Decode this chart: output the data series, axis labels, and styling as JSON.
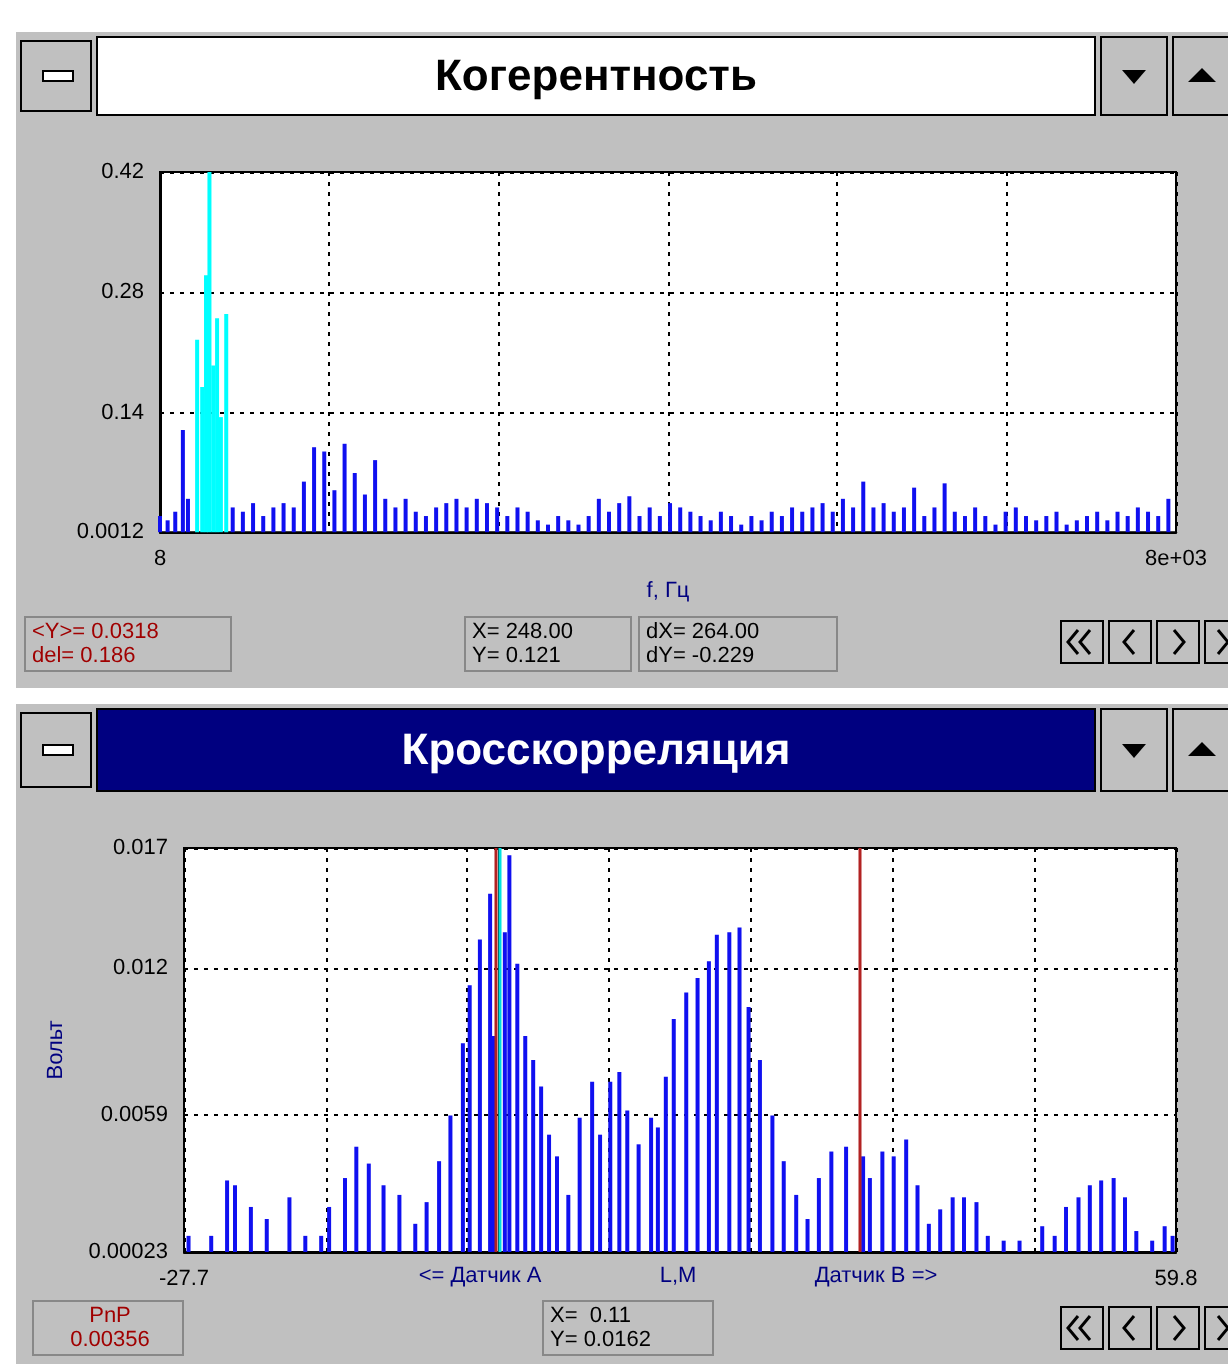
{
  "chart_data": [
    {
      "type": "bar",
      "title": "Когерентность",
      "xlabel": "f, Гц",
      "xlim": [
        8,
        8000
      ],
      "xticks": [
        8,
        {
          "value": 1340,
          "label": null
        },
        {
          "value": 2672,
          "label": null
        },
        {
          "value": 4004,
          "label": null
        },
        {
          "value": 5336,
          "label": null
        },
        {
          "value": 6668,
          "label": null
        },
        {
          "value": 8000,
          "label": "8e+03"
        }
      ],
      "ylim": [
        0.0012,
        0.42
      ],
      "yticks": [
        0.0012,
        0.14,
        0.28,
        0.42
      ],
      "grid": true,
      "series": [
        {
          "color": "#1010f0",
          "x": [
            8,
            68,
            128,
            188,
            228,
            580,
            660,
            740,
            820,
            900,
            980,
            1060,
            1140,
            1220,
            1300,
            1380,
            1460,
            1540,
            1620,
            1700,
            1780,
            1860,
            1940,
            2020,
            2100,
            2180,
            2260,
            2340,
            2420,
            2500,
            2580,
            2660,
            2740,
            2820,
            2900,
            2980,
            3060,
            3140,
            3220,
            3300,
            3380,
            3460,
            3540,
            3620,
            3700,
            3780,
            3860,
            3940,
            4020,
            4100,
            4180,
            4260,
            4340,
            4420,
            4500,
            4580,
            4660,
            4740,
            4820,
            4900,
            4980,
            5060,
            5140,
            5220,
            5300,
            5380,
            5460,
            5540,
            5620,
            5700,
            5780,
            5860,
            5940,
            6020,
            6100,
            6180,
            6260,
            6340,
            6420,
            6500,
            6580,
            6660,
            6740,
            6820,
            6900,
            6980,
            7060,
            7140,
            7220,
            7300,
            7380,
            7460,
            7540,
            7620,
            7700,
            7780,
            7860,
            7940
          ],
          "values": [
            0.02,
            0.015,
            0.025,
            0.12,
            0.04,
            0.03,
            0.025,
            0.035,
            0.02,
            0.03,
            0.035,
            0.03,
            0.06,
            0.1,
            0.095,
            0.05,
            0.104,
            0.07,
            0.045,
            0.085,
            0.04,
            0.03,
            0.04,
            0.025,
            0.02,
            0.03,
            0.035,
            0.04,
            0.03,
            0.04,
            0.035,
            0.03,
            0.02,
            0.03,
            0.025,
            0.015,
            0.01,
            0.02,
            0.015,
            0.01,
            0.02,
            0.04,
            0.025,
            0.035,
            0.043,
            0.02,
            0.03,
            0.02,
            0.035,
            0.03,
            0.025,
            0.02,
            0.015,
            0.025,
            0.02,
            0.01,
            0.02,
            0.015,
            0.025,
            0.02,
            0.03,
            0.025,
            0.03,
            0.035,
            0.025,
            0.04,
            0.03,
            0.06,
            0.03,
            0.035,
            0.025,
            0.03,
            0.053,
            0.02,
            0.03,
            0.058,
            0.025,
            0.02,
            0.03,
            0.02,
            0.01,
            0.025,
            0.03,
            0.02,
            0.015,
            0.02,
            0.025,
            0.01,
            0.015,
            0.02,
            0.025,
            0.015,
            0.025,
            0.02,
            0.03,
            0.025,
            0.02,
            0.04
          ]
        },
        {
          "color": "#00ffff",
          "x": [
            300,
            340,
            370,
            397,
            427,
            457,
            487,
            529
          ],
          "values": [
            0.225,
            0.17,
            0.3,
            0.42,
            0.195,
            0.25,
            0.135,
            0.255
          ]
        }
      ],
      "annotations": [
        "<Y>= 0.0318",
        "del= 0.186",
        "X= 248.00",
        "Y= 0.121",
        "dX= 264.00",
        "dY= -0.229"
      ]
    },
    {
      "type": "bar",
      "title": "Кросскорреляция",
      "ylabel": "Вольт",
      "xlim": [
        -27.7,
        59.8
      ],
      "xticks": [
        -27.7,
        {
          "value": -15.2,
          "label": null
        },
        {
          "value": -2.7,
          "label": null
        },
        {
          "value": 9.8,
          "label": null
        },
        {
          "value": 22.3,
          "label": null
        },
        {
          "value": 34.8,
          "label": null
        },
        {
          "value": 47.3,
          "label": null
        },
        59.8
      ],
      "ylim": [
        0.00023,
        0.017
      ],
      "yticks": [
        0.00023,
        0.0059,
        0.012,
        0.017
      ],
      "grid": true,
      "series": [
        {
          "color": "#1010f0",
          "x": [
            -27.3,
            -25.3,
            -23.9,
            -23.2,
            -21.8,
            -20.4,
            -18.4,
            -17.0,
            -15.6,
            -14.9,
            -13.5,
            -12.5,
            -11.4,
            -10.1,
            -8.7,
            -7.3,
            -6.3,
            -5.2,
            -4.2,
            -3.1,
            -2.5,
            -1.6,
            -0.7,
            -0.4,
            0.6,
            1.0,
            1.7,
            2.4,
            3.1,
            3.8,
            4.5,
            5.2,
            6.2,
            7.2,
            8.3,
            9.0,
            9.9,
            10.7,
            11.4,
            12.4,
            13.5,
            14.1,
            14.8,
            15.5,
            16.6,
            17.6,
            18.6,
            19.3,
            20.4,
            21.3,
            22.1,
            23.1,
            24.2,
            25.2,
            26.3,
            27.3,
            28.3,
            29.4,
            30.7,
            32.2,
            32.8,
            33.9,
            34.9,
            36.0,
            37.0,
            38.0,
            39.0,
            40.1,
            41.1,
            42.2,
            43.2,
            44.6,
            46.0,
            48.0,
            49.1,
            50.1,
            51.2,
            52.2,
            53.2,
            54.3,
            55.3,
            56.3,
            57.7,
            58.8,
            59.5
          ],
          "values": [
            0.0009,
            0.0009,
            0.0032,
            0.003,
            0.0021,
            0.0016,
            0.0025,
            0.0009,
            0.0009,
            0.0021,
            0.0033,
            0.0046,
            0.0039,
            0.003,
            0.0026,
            0.0014,
            0.0023,
            0.004,
            0.0059,
            0.0089,
            0.0113,
            0.0132,
            0.0151,
            0.0092,
            0.0135,
            0.0167,
            0.0122,
            0.0092,
            0.0082,
            0.0071,
            0.0051,
            0.0042,
            0.0026,
            0.0058,
            0.0073,
            0.0051,
            0.0073,
            0.0077,
            0.0061,
            0.0047,
            0.0058,
            0.0054,
            0.0075,
            0.0099,
            0.011,
            0.0116,
            0.0123,
            0.0134,
            0.0135,
            0.0137,
            0.0104,
            0.0082,
            0.0059,
            0.004,
            0.0026,
            0.0016,
            0.0033,
            0.0044,
            0.0046,
            0.0042,
            0.0033,
            0.0044,
            0.0042,
            0.0049,
            0.003,
            0.0014,
            0.002,
            0.0025,
            0.0025,
            0.0023,
            0.0009,
            0.0007,
            0.0007,
            0.0013,
            0.0009,
            0.0021,
            0.0025,
            0.003,
            0.0032,
            0.0033,
            0.0025,
            0.0011,
            0.0007,
            0.0013,
            0.0009
          ]
        }
      ],
      "ref_lines": [
        {
          "axis": "x",
          "value": -0.2,
          "color": "#b22222"
        },
        {
          "axis": "x",
          "value": 0.11,
          "color": "#00e0e0"
        },
        {
          "axis": "x",
          "value": 31.8,
          "color": "#b22222"
        }
      ],
      "annotations": [
        "<= Датчик A",
        "L,M",
        "Датчик B =>",
        "PnP",
        "0.00356",
        "X=  0.11",
        "Y= 0.0162"
      ]
    }
  ]
}
